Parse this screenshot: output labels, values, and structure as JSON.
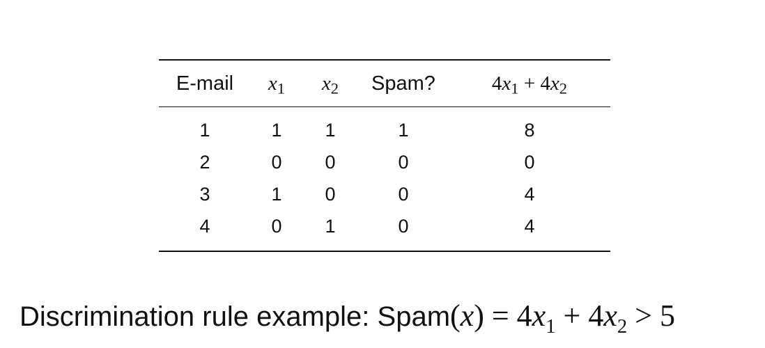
{
  "table": {
    "headers": [
      "E-mail",
      "x1",
      "x2",
      "Spam?",
      "4x1 + 4x2"
    ],
    "rows": [
      [
        "1",
        "1",
        "1",
        "1",
        "8"
      ],
      [
        "2",
        "0",
        "0",
        "0",
        "0"
      ],
      [
        "3",
        "1",
        "0",
        "0",
        "4"
      ],
      [
        "4",
        "0",
        "1",
        "0",
        "4"
      ]
    ]
  },
  "caption": {
    "prefix": "Discrimination rule example: ",
    "function_name": "Spam",
    "formula_text": "Spam(x) = 4x1 + 4x2 > 5"
  }
}
